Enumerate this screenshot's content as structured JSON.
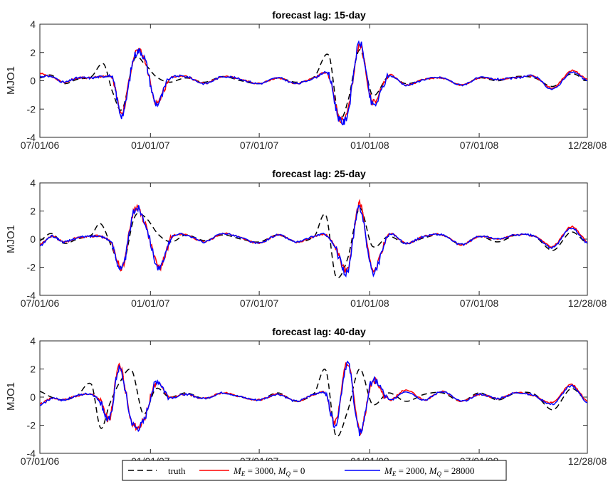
{
  "colors": {
    "truth": "#000000",
    "series_a": "#ff0000",
    "series_b": "#0000ff",
    "axes": "#262626"
  },
  "legend": {
    "placement": "bottom-center",
    "entries": [
      {
        "label": "truth",
        "color": "#000000",
        "style": "dashed"
      },
      {
        "label": "M_E = 3000, M_Q = 0",
        "color": "#ff0000",
        "style": "solid"
      },
      {
        "label": "M_E = 2000, M_Q = 28000",
        "color": "#0000ff",
        "style": "solid"
      }
    ]
  },
  "chart_data": [
    {
      "type": "line",
      "title": "forecast lag: 15-day",
      "ylabel": "MJO1",
      "xlim": [
        "07/01/06",
        "12/28/08"
      ],
      "ylim": [
        -4,
        4
      ],
      "yticks": [
        "4",
        "2",
        "0",
        "-2",
        "-4"
      ],
      "xticks": [
        "07/01/06",
        "01/01/07",
        "07/01/07",
        "01/01/08",
        "07/01/08",
        "12/28/08"
      ],
      "grid": false,
      "series": [
        {
          "name": "truth",
          "x": [
            "07/01/06",
            "07/20/06",
            "08/10/06",
            "09/01/06",
            "09/25/06",
            "10/15/06",
            "10/30/06",
            "11/15/06",
            "12/05/06",
            "12/22/06",
            "01/10/07",
            "02/01/07",
            "03/01/07",
            "04/01/07",
            "05/01/07",
            "06/01/07",
            "07/01/07",
            "08/01/07",
            "09/01/07",
            "10/01/07",
            "10/25/07",
            "11/10/07",
            "11/25/07",
            "12/15/07",
            "01/05/08",
            "02/01/08",
            "03/01/08",
            "04/01/08",
            "05/01/08",
            "06/01/08",
            "07/01/08",
            "08/01/08",
            "09/01/08",
            "10/01/08",
            "11/01/08",
            "12/01/08",
            "12/28/08"
          ],
          "y": [
            0.2,
            0.4,
            -0.2,
            0.1,
            0.3,
            1.2,
            -0.8,
            -2.0,
            1.5,
            1.2,
            0.3,
            -0.1,
            0.2,
            -0.1,
            0.3,
            0.0,
            -0.2,
            0.2,
            -0.1,
            0.3,
            1.8,
            -2.5,
            -1.5,
            2.2,
            -1.0,
            0.3,
            -0.2,
            0.1,
            0.2,
            -0.3,
            0.2,
            0.0,
            0.3,
            0.2,
            -0.4,
            0.5,
            0.0
          ]
        },
        {
          "name": "M_E = 3000, M_Q = 0",
          "x": [
            "07/01/06",
            "07/20/06",
            "08/10/06",
            "09/01/06",
            "09/25/06",
            "10/15/06",
            "10/30/06",
            "11/15/06",
            "12/05/06",
            "12/22/06",
            "01/10/07",
            "02/01/07",
            "03/01/07",
            "04/01/07",
            "05/01/07",
            "06/01/07",
            "07/01/07",
            "08/01/07",
            "09/01/07",
            "10/01/07",
            "10/25/07",
            "11/10/07",
            "11/25/07",
            "12/15/07",
            "01/05/08",
            "02/01/08",
            "03/01/08",
            "04/01/08",
            "05/01/08",
            "06/01/08",
            "07/01/08",
            "08/01/08",
            "09/01/08",
            "10/01/08",
            "11/01/08",
            "12/01/08",
            "12/28/08"
          ],
          "y": [
            0.5,
            0.3,
            -0.1,
            0.2,
            0.2,
            0.3,
            0.1,
            -2.3,
            1.8,
            1.5,
            -1.5,
            0.1,
            0.3,
            -0.2,
            0.3,
            0.1,
            -0.2,
            0.2,
            -0.2,
            0.2,
            0.4,
            -2.5,
            -2.2,
            2.5,
            -1.5,
            0.4,
            -0.3,
            0.1,
            0.2,
            -0.3,
            0.2,
            0.1,
            0.2,
            0.3,
            -0.5,
            0.7,
            0.1
          ]
        },
        {
          "name": "M_E = 2000, M_Q = 28000",
          "x": [
            "07/01/06",
            "07/20/06",
            "08/10/06",
            "09/01/06",
            "09/25/06",
            "10/15/06",
            "10/30/06",
            "11/15/06",
            "12/05/06",
            "12/22/06",
            "01/10/07",
            "02/01/07",
            "03/01/07",
            "04/01/07",
            "05/01/07",
            "06/01/07",
            "07/01/07",
            "08/01/07",
            "09/01/07",
            "10/01/07",
            "10/25/07",
            "11/10/07",
            "11/25/07",
            "12/15/07",
            "01/05/08",
            "02/01/08",
            "03/01/08",
            "04/01/08",
            "05/01/08",
            "06/01/08",
            "07/01/08",
            "08/01/08",
            "09/01/08",
            "10/01/08",
            "11/01/08",
            "12/01/08",
            "12/28/08"
          ],
          "y": [
            0.3,
            0.3,
            -0.1,
            0.2,
            0.2,
            0.3,
            0.1,
            -2.4,
            1.7,
            1.6,
            -1.6,
            0.1,
            0.3,
            -0.2,
            0.3,
            0.1,
            -0.2,
            0.2,
            -0.2,
            0.2,
            0.4,
            -2.6,
            -2.3,
            2.7,
            -1.7,
            0.3,
            -0.3,
            0.1,
            0.2,
            -0.3,
            0.2,
            0.1,
            0.2,
            0.3,
            -0.6,
            0.6,
            0.0
          ]
        }
      ]
    },
    {
      "type": "line",
      "title": "forecast lag: 25-day",
      "ylabel": "MJO1",
      "xlim": [
        "07/01/06",
        "12/28/08"
      ],
      "ylim": [
        -4,
        4
      ],
      "yticks": [
        "4",
        "2",
        "0",
        "-2",
        "-4"
      ],
      "xticks": [
        "07/01/06",
        "01/01/07",
        "07/01/07",
        "01/01/08",
        "07/01/08",
        "12/28/08"
      ],
      "grid": false,
      "series": [
        {
          "name": "truth",
          "x": [
            "07/01/06",
            "07/20/06",
            "08/10/06",
            "09/01/06",
            "09/25/06",
            "10/10/06",
            "10/28/06",
            "11/15/06",
            "12/05/06",
            "12/22/06",
            "01/15/07",
            "02/05/07",
            "03/01/07",
            "04/01/07",
            "05/01/07",
            "06/01/07",
            "07/01/07",
            "08/01/07",
            "09/01/07",
            "10/01/07",
            "10/20/07",
            "11/05/07",
            "11/25/07",
            "12/15/07",
            "01/05/08",
            "02/01/08",
            "03/01/08",
            "04/01/08",
            "05/01/08",
            "06/01/08",
            "07/01/08",
            "08/01/08",
            "09/01/08",
            "10/01/08",
            "11/01/08",
            "12/01/08",
            "12/28/08"
          ],
          "y": [
            -0.1,
            0.4,
            -0.3,
            0.0,
            0.3,
            1.1,
            -0.5,
            -2.0,
            1.5,
            1.6,
            0.3,
            -0.2,
            0.3,
            -0.1,
            0.3,
            0.0,
            -0.2,
            0.3,
            -0.2,
            0.2,
            1.7,
            -2.6,
            -1.4,
            2.2,
            -0.5,
            0.2,
            -0.3,
            0.1,
            0.3,
            -0.4,
            0.2,
            -0.2,
            0.3,
            0.2,
            -0.8,
            0.5,
            -0.3
          ]
        },
        {
          "name": "M_E = 3000, M_Q = 0",
          "x": [
            "07/01/06",
            "07/20/06",
            "08/10/06",
            "09/01/06",
            "09/25/06",
            "10/10/06",
            "10/28/06",
            "11/15/06",
            "12/05/06",
            "12/22/06",
            "01/15/07",
            "02/05/07",
            "03/01/07",
            "04/01/07",
            "05/01/07",
            "06/01/07",
            "07/01/07",
            "08/01/07",
            "09/01/07",
            "10/01/07",
            "10/20/07",
            "11/05/07",
            "11/25/07",
            "12/15/07",
            "01/05/08",
            "02/01/08",
            "03/01/08",
            "04/01/08",
            "05/01/08",
            "06/01/08",
            "07/01/08",
            "08/01/08",
            "09/01/08",
            "10/01/08",
            "11/01/08",
            "12/01/08",
            "12/28/08"
          ],
          "y": [
            -0.4,
            0.2,
            -0.2,
            0.1,
            0.2,
            0.2,
            -0.3,
            -2.0,
            2.1,
            1.2,
            -2.0,
            0.1,
            0.3,
            -0.2,
            0.4,
            0.1,
            -0.3,
            0.3,
            -0.2,
            0.2,
            0.3,
            -0.6,
            -2.2,
            2.5,
            -2.2,
            0.3,
            -0.3,
            0.2,
            0.3,
            -0.4,
            0.2,
            0.0,
            0.3,
            0.2,
            -0.5,
            0.9,
            -0.2
          ]
        },
        {
          "name": "M_E = 2000, M_Q = 28000",
          "x": [
            "07/01/06",
            "07/20/06",
            "08/10/06",
            "09/01/06",
            "09/25/06",
            "10/10/06",
            "10/28/06",
            "11/15/06",
            "12/05/06",
            "12/22/06",
            "01/15/07",
            "02/05/07",
            "03/01/07",
            "04/01/07",
            "05/01/07",
            "06/01/07",
            "07/01/07",
            "08/01/07",
            "09/01/07",
            "10/01/07",
            "10/20/07",
            "11/05/07",
            "11/25/07",
            "12/15/07",
            "01/05/08",
            "02/01/08",
            "03/01/08",
            "04/01/08",
            "05/01/08",
            "06/01/08",
            "07/01/08",
            "08/01/08",
            "09/01/08",
            "10/01/08",
            "11/01/08",
            "12/01/08",
            "12/28/08"
          ],
          "y": [
            -0.5,
            0.2,
            -0.2,
            0.1,
            0.2,
            0.2,
            -0.3,
            -2.1,
            2.0,
            1.3,
            -2.1,
            0.1,
            0.3,
            -0.2,
            0.4,
            0.1,
            -0.3,
            0.3,
            -0.2,
            0.2,
            0.3,
            -0.7,
            -2.3,
            2.3,
            -2.3,
            0.3,
            -0.3,
            0.2,
            0.3,
            -0.4,
            0.2,
            0.0,
            0.3,
            0.2,
            -0.6,
            0.8,
            -0.3
          ]
        }
      ]
    },
    {
      "type": "line",
      "title": "forecast lag: 40-day",
      "ylabel": "MJO1",
      "xlim": [
        "07/01/06",
        "12/28/08"
      ],
      "ylim": [
        -4,
        4
      ],
      "yticks": [
        "4",
        "2",
        "0",
        "-2",
        "-4"
      ],
      "xticks": [
        "07/01/06",
        "01/01/07",
        "07/01/07",
        "01/01/08",
        "07/01/08",
        "12/28/08"
      ],
      "grid": false,
      "series": [
        {
          "name": "truth",
          "x": [
            "07/01/06",
            "07/20/06",
            "08/10/06",
            "09/01/06",
            "09/25/06",
            "10/10/06",
            "10/25/06",
            "11/10/06",
            "12/01/06",
            "12/20/06",
            "01/10/07",
            "02/01/07",
            "03/01/07",
            "04/01/07",
            "05/01/07",
            "06/01/07",
            "07/01/07",
            "08/01/07",
            "09/01/07",
            "10/01/07",
            "10/20/07",
            "11/05/07",
            "11/25/07",
            "12/15/07",
            "01/05/08",
            "02/01/08",
            "03/01/08",
            "04/01/08",
            "05/01/08",
            "06/01/08",
            "07/01/08",
            "08/01/08",
            "09/01/08",
            "10/01/08",
            "11/01/08",
            "12/01/08",
            "12/28/08"
          ],
          "y": [
            0.4,
            0.0,
            -0.2,
            0.1,
            0.9,
            -2.2,
            -0.5,
            1.0,
            1.9,
            -1.2,
            0.6,
            0.0,
            0.3,
            -0.1,
            0.3,
            0.0,
            -0.2,
            0.3,
            -0.3,
            0.3,
            1.9,
            -2.7,
            -1.0,
            2.0,
            -0.5,
            0.3,
            -0.3,
            0.2,
            0.3,
            -0.3,
            0.3,
            -0.2,
            0.3,
            0.2,
            -0.9,
            0.6,
            -0.3
          ]
        },
        {
          "name": "M_E = 3000, M_Q = 0",
          "x": [
            "07/01/06",
            "07/20/06",
            "08/10/06",
            "09/01/06",
            "09/25/06",
            "10/10/06",
            "10/25/06",
            "11/10/06",
            "12/01/06",
            "12/20/06",
            "01/10/07",
            "02/01/07",
            "03/01/07",
            "04/01/07",
            "05/01/07",
            "06/01/07",
            "07/01/07",
            "08/01/07",
            "09/01/07",
            "10/01/07",
            "10/20/07",
            "11/05/07",
            "11/25/07",
            "12/15/07",
            "01/05/08",
            "02/01/08",
            "03/01/08",
            "04/01/08",
            "05/01/08",
            "06/01/08",
            "07/01/08",
            "08/01/08",
            "09/01/08",
            "10/01/08",
            "11/01/08",
            "12/01/08",
            "12/28/08"
          ],
          "y": [
            -0.5,
            -0.1,
            -0.2,
            0.1,
            0.2,
            -0.3,
            -1.5,
            2.2,
            -1.7,
            -1.7,
            1.0,
            0.0,
            0.2,
            -0.1,
            0.3,
            0.0,
            -0.2,
            0.2,
            -0.3,
            0.2,
            0.2,
            -1.8,
            2.5,
            -2.4,
            1.1,
            -0.2,
            0.5,
            -0.2,
            0.4,
            -0.3,
            0.2,
            -0.1,
            0.3,
            0.1,
            -0.4,
            0.9,
            -0.3
          ]
        },
        {
          "name": "M_E = 2000, M_Q = 28000",
          "x": [
            "07/01/06",
            "07/20/06",
            "08/10/06",
            "09/01/06",
            "09/25/06",
            "10/10/06",
            "10/25/06",
            "11/10/06",
            "12/01/06",
            "12/20/06",
            "01/10/07",
            "02/01/07",
            "03/01/07",
            "04/01/07",
            "05/01/07",
            "06/01/07",
            "07/01/07",
            "08/01/07",
            "09/01/07",
            "10/01/07",
            "10/20/07",
            "11/05/07",
            "11/25/07",
            "12/15/07",
            "01/05/08",
            "02/01/08",
            "03/01/08",
            "04/01/08",
            "05/01/08",
            "06/01/08",
            "07/01/08",
            "08/01/08",
            "09/01/08",
            "10/01/08",
            "11/01/08",
            "12/01/08",
            "12/28/08"
          ],
          "y": [
            -0.6,
            -0.1,
            -0.2,
            0.1,
            0.2,
            -0.4,
            -1.6,
            2.0,
            -1.8,
            -1.8,
            1.1,
            0.0,
            0.2,
            -0.1,
            0.3,
            0.0,
            -0.2,
            0.2,
            -0.3,
            0.2,
            0.2,
            -1.9,
            2.4,
            -2.5,
            1.2,
            -0.2,
            0.4,
            -0.2,
            0.4,
            -0.3,
            0.2,
            -0.1,
            0.3,
            0.1,
            -0.5,
            0.8,
            -0.4
          ]
        }
      ]
    }
  ]
}
